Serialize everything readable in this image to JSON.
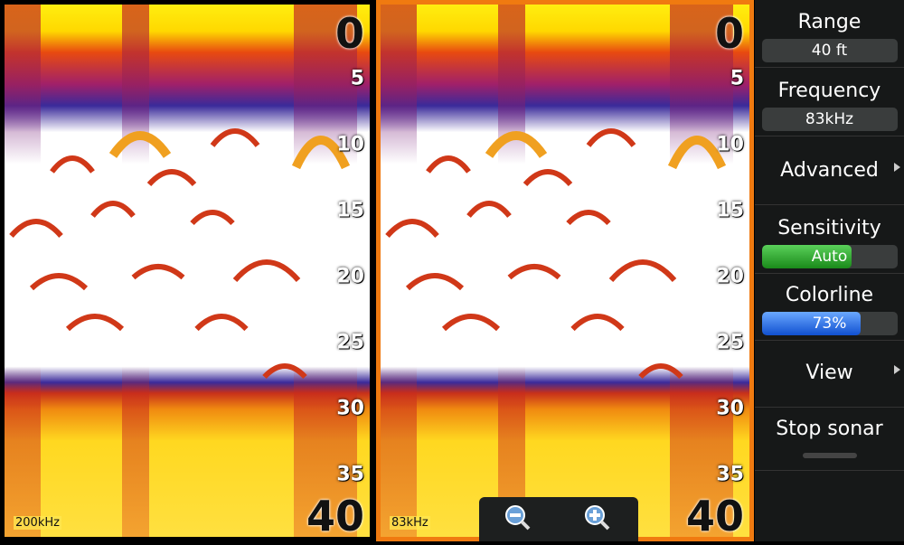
{
  "panels": [
    {
      "frequency": "200kHz",
      "depth_scale": [
        0,
        5,
        10,
        15,
        20,
        25,
        30,
        35,
        40
      ]
    },
    {
      "frequency": "83kHz",
      "depth_scale": [
        0,
        5,
        10,
        15,
        20,
        25,
        30,
        35,
        40
      ]
    }
  ],
  "menu": [
    {
      "label": "Range",
      "value": "40 ft"
    },
    {
      "label": "Frequency",
      "value": "83kHz"
    },
    {
      "label": "Advanced"
    },
    {
      "label": "Sensitivity",
      "value": "Auto"
    },
    {
      "label": "Colorline",
      "value": "73%"
    },
    {
      "label": "View"
    },
    {
      "label": "Stop sonar"
    }
  ]
}
